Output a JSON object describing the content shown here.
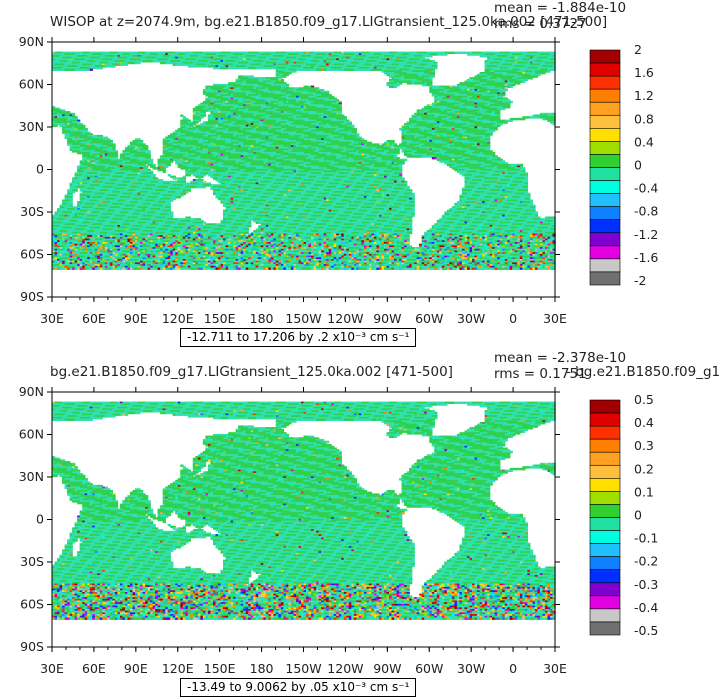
{
  "chart_data": [
    {
      "type": "heatmap",
      "title": "WISOP at z=2074.9m, bg.e21.B1850.f09_g17.LIGtransient_125.0ka.002 [471-500]",
      "mean_text": "mean = -1.884e-10",
      "rms_text": "rms = 0.3727",
      "range_text": "-12.711 to 17.206 by .2 x10⁻³ cm s⁻¹",
      "x_ticks": [
        "30E",
        "60E",
        "90E",
        "120E",
        "150E",
        "180",
        "150W",
        "120W",
        "90W",
        "60W",
        "30W",
        "0",
        "30E"
      ],
      "y_ticks": [
        "90N",
        "60N",
        "30N",
        "0",
        "30S",
        "60S",
        "90S"
      ],
      "colorbar_labels": [
        "2",
        "1.6",
        "1.2",
        "0.8",
        "0.4",
        "0",
        "-0.4",
        "-0.8",
        "-1.2",
        "-1.6",
        "-2"
      ],
      "colorbar_values": [
        2,
        1.6,
        1.2,
        0.8,
        0.4,
        0,
        -0.4,
        -0.8,
        -1.2,
        -1.6,
        -2
      ]
    },
    {
      "type": "heatmap",
      "title": "bg.e21.B1850.f09_g17.LIGtransient_125.0ka.002 [471-500]",
      "overlap_text": "- bg.e21.B1850.f09_g1",
      "mean_text": "mean = -2.378e-10",
      "rms_text": "rms = 0.1751",
      "range_text": "-13.49 to 9.0062 by .05 x10⁻³ cm s⁻¹",
      "x_ticks": [
        "30E",
        "60E",
        "90E",
        "120E",
        "150E",
        "180",
        "150W",
        "120W",
        "90W",
        "60W",
        "30W",
        "0",
        "30E"
      ],
      "y_ticks": [
        "90N",
        "60N",
        "30N",
        "0",
        "30S",
        "60S",
        "90S"
      ],
      "colorbar_labels": [
        "0.5",
        "0.4",
        "0.3",
        "0.2",
        "0.1",
        "0",
        "-0.1",
        "-0.2",
        "-0.3",
        "-0.4",
        "-0.5"
      ],
      "colorbar_values": [
        0.5,
        0.4,
        0.3,
        0.2,
        0.1,
        0,
        -0.1,
        -0.2,
        -0.3,
        -0.4,
        -0.5
      ]
    }
  ],
  "colors": {
    "palette": [
      "#a00000",
      "#e00000",
      "#ff3000",
      "#ff8000",
      "#ffa020",
      "#ffc040",
      "#ffe000",
      "#a0e000",
      "#30d030",
      "#20e0a0",
      "#00ffe0",
      "#20c0ff",
      "#1080ff",
      "#0030ff",
      "#8000d0",
      "#e000e0",
      "#c8c8c8",
      "#707070"
    ],
    "ocean_base": "#30e0b0",
    "ocean_green": "#30d050"
  }
}
